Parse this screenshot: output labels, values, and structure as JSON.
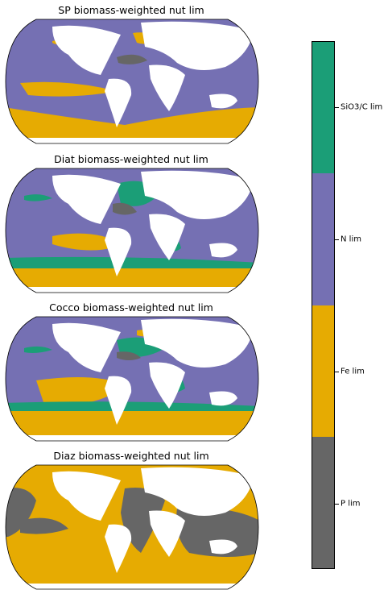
{
  "colors": {
    "P lim": "#666666",
    "Fe lim": "#e6ab02",
    "N lim": "#7570b3",
    "SiO3/C lim": "#1b9e77",
    "land": "#ffffff"
  },
  "chart_data": [
    {
      "type": "map",
      "title": "SP biomass-weighted nut lim",
      "regions": [
        {
          "category": "N lim",
          "desc": "most tropical and subtropical ocean"
        },
        {
          "category": "Fe lim",
          "desc": "Southern Ocean, eastern equatorial Pacific, North Pacific subarctic"
        },
        {
          "category": "P lim",
          "desc": "subtropical North Atlantic"
        }
      ]
    },
    {
      "type": "map",
      "title": "Diat biomass-weighted nut lim",
      "regions": [
        {
          "category": "N lim",
          "desc": "subtropical gyres"
        },
        {
          "category": "Fe lim",
          "desc": "Southern Ocean, equatorial Pacific"
        },
        {
          "category": "SiO3/C lim",
          "desc": "North Atlantic, Antarctic Circumpolar band, Benguela"
        },
        {
          "category": "P lim",
          "desc": "subtropical North Atlantic"
        }
      ]
    },
    {
      "type": "map",
      "title": "Cocco biomass-weighted nut lim",
      "regions": [
        {
          "category": "N lim",
          "desc": "Pacific and Indian subtropics"
        },
        {
          "category": "Fe lim",
          "desc": "Southern Ocean, South Pacific"
        },
        {
          "category": "SiO3/C lim",
          "desc": "North Atlantic, tropical Atlantic, Southern band"
        },
        {
          "category": "P lim",
          "desc": "North Atlantic gyre"
        }
      ]
    },
    {
      "type": "map",
      "title": "Diaz biomass-weighted nut lim",
      "regions": [
        {
          "category": "Fe lim",
          "desc": "most of the ocean"
        },
        {
          "category": "P lim",
          "desc": "Atlantic and Indian tropics, eastern Pacific"
        }
      ]
    },
    {
      "type": "colorbar",
      "orientation": "vertical",
      "ticks": [
        "P lim",
        "Fe lim",
        "N lim",
        "SiO3/C lim"
      ]
    }
  ]
}
